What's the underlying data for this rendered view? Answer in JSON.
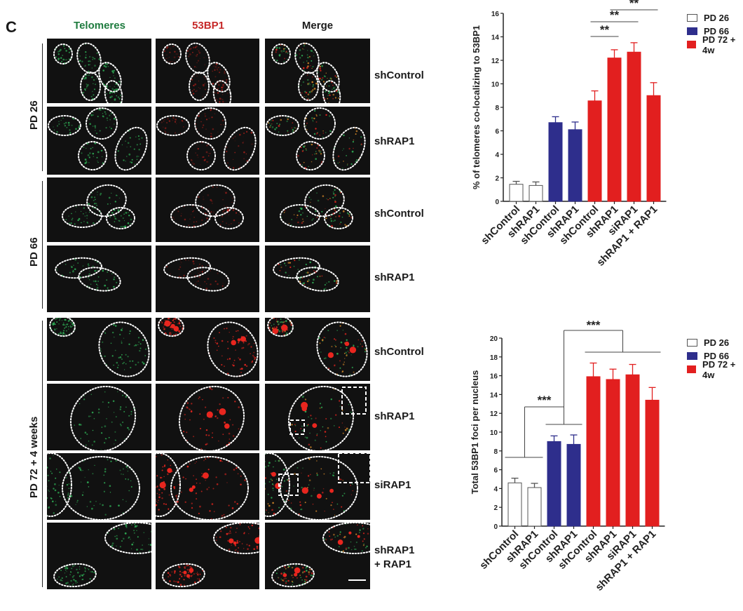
{
  "figure": {
    "panel_letter": "C",
    "columns": [
      {
        "label": "Telomeres",
        "color": "#1e7b3e"
      },
      {
        "label": "53BP1",
        "color": "#c62828"
      },
      {
        "label": "Merge",
        "color": "#1a1a1a"
      }
    ],
    "groups": [
      {
        "label": "PD 26",
        "rows": [
          "shControl",
          "shRAP1"
        ]
      },
      {
        "label": "PD 66",
        "rows": [
          "shControl",
          "shRAP1"
        ]
      },
      {
        "label": "PD 72 + 4 weeks",
        "rows": [
          "shControl",
          "shRAP1",
          "siRAP1",
          "shRAP1\n+ RAP1"
        ]
      }
    ],
    "row_labels": [
      "shControl",
      "shRAP1",
      "shControl",
      "shRAP1",
      "shControl",
      "shRAP1",
      "siRAP1",
      "shRAP1",
      "+ RAP1"
    ]
  },
  "colors": {
    "pd26": "#ffffff",
    "pd66": "#2e2e8c",
    "pd72": "#e21f1f",
    "telomere_green": "#2fae55",
    "foci_red": "#e8261f"
  },
  "chart_data": [
    {
      "type": "bar",
      "title": "",
      "xlabel": "",
      "ylabel": "% of telomeres co-localizing to 53BP1",
      "ylim": [
        0,
        16
      ],
      "yticks": [
        0,
        2,
        4,
        6,
        8,
        10,
        12,
        14,
        16
      ],
      "categories": [
        "shControl",
        "shRAP1",
        "shControl",
        "shRAP1",
        "shControl",
        "shRAP1",
        "siRAP1",
        "shRAP1 + RAP1"
      ],
      "groups": [
        "PD 26",
        "PD 26",
        "PD 66",
        "PD 66",
        "PD 72 + 4w",
        "PD 72 + 4w",
        "PD 72 + 4w",
        "PD 72 + 4w"
      ],
      "values": [
        1.45,
        1.35,
        6.7,
        6.1,
        8.55,
        12.2,
        12.7,
        9.0
      ],
      "errors": [
        0.25,
        0.3,
        0.5,
        0.65,
        0.85,
        0.7,
        0.8,
        1.1
      ],
      "legend": [
        "PD 26",
        "PD 66",
        "PD 72 + 4w"
      ],
      "legend_position": "right-top",
      "grid": false,
      "annotations": [
        {
          "text": "**",
          "from": 4,
          "to": 5
        },
        {
          "text": "**",
          "from": 4,
          "to": 6
        },
        {
          "text": "**",
          "from": 5,
          "to": 7
        }
      ]
    },
    {
      "type": "bar",
      "title": "",
      "xlabel": "",
      "ylabel": "Total 53BP1 foci per nucleus",
      "ylim": [
        0,
        20
      ],
      "yticks": [
        0,
        2,
        4,
        6,
        8,
        10,
        12,
        14,
        16,
        18,
        20
      ],
      "categories": [
        "shControl",
        "shRAP1",
        "shControl",
        "shRAP1",
        "shControl",
        "shRAP1",
        "siRAP1",
        "shRAP1 + RAP1"
      ],
      "groups": [
        "PD 26",
        "PD 26",
        "PD 66",
        "PD 66",
        "PD 72 + 4w",
        "PD 72 + 4w",
        "PD 72 + 4w",
        "PD 72 + 4w"
      ],
      "values": [
        4.6,
        4.1,
        9.0,
        8.7,
        15.9,
        15.6,
        16.1,
        13.4
      ],
      "errors": [
        0.5,
        0.45,
        0.6,
        1.0,
        1.45,
        1.1,
        1.1,
        1.35
      ],
      "legend": [
        "PD 26",
        "PD 66",
        "PD 72 + 4w"
      ],
      "legend_position": "right-top",
      "grid": false,
      "annotations": [
        {
          "text": "***",
          "from_group": "PD 26",
          "to_group": "PD 66"
        },
        {
          "text": "***",
          "from_group": "PD 66",
          "to_group": "PD 72 + 4w"
        }
      ]
    }
  ]
}
